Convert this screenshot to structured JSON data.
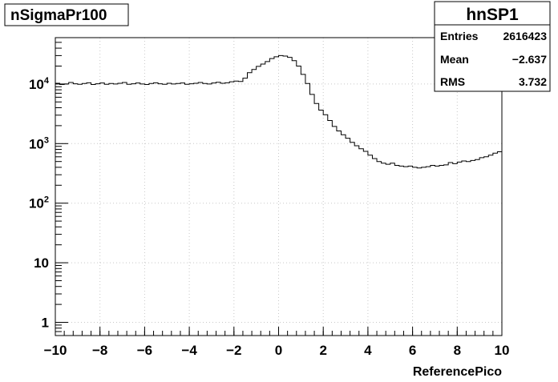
{
  "title": "nSigmaPr100",
  "stats": {
    "name": "hnSP1",
    "rows": [
      {
        "label": "Entries",
        "value": "2616423"
      },
      {
        "label": "Mean",
        "value": "−2.637"
      },
      {
        "label": "RMS",
        "value": "3.732"
      }
    ]
  },
  "chart_data": {
    "type": "histogram",
    "xlabel": "ReferencePico",
    "ylabel": "",
    "xlim": [
      -10,
      10
    ],
    "ylim": [
      0.6,
      60000
    ],
    "log_y": true,
    "grid": true,
    "x_ticks": [
      -10,
      -8,
      -6,
      -4,
      -2,
      0,
      2,
      4,
      6,
      8,
      10
    ],
    "x_tick_labels": [
      "−10",
      "−8",
      "−6",
      "−4",
      "−2",
      "0",
      "2",
      "4",
      "6",
      "8",
      "10"
    ],
    "y_ticks": [
      1,
      10,
      100,
      1000,
      10000
    ],
    "y_tick_labels": [
      "1",
      "10",
      "10^2",
      "10^3",
      "10^4"
    ],
    "bin_edges_start": -10,
    "bin_width": 0.2,
    "counts": [
      10300,
      9800,
      10000,
      10600,
      10100,
      9900,
      10200,
      10500,
      9800,
      10100,
      10400,
      9900,
      10200,
      10000,
      10300,
      10600,
      9900,
      10100,
      10400,
      10000,
      9800,
      10200,
      10500,
      10100,
      9900,
      10300,
      10000,
      10200,
      10400,
      9900,
      10100,
      10300,
      10600,
      10200,
      10000,
      10400,
      10700,
      10300,
      10500,
      10900,
      11200,
      11000,
      12500,
      15500,
      17500,
      19800,
      21600,
      23800,
      26700,
      28700,
      30000,
      29400,
      28000,
      24600,
      20000,
      14500,
      10200,
      6700,
      4700,
      3650,
      3050,
      2440,
      1940,
      1630,
      1410,
      1230,
      1050,
      920,
      820,
      740,
      640,
      560,
      500,
      470,
      450,
      470,
      430,
      420,
      410,
      420,
      400,
      390,
      400,
      410,
      430,
      420,
      430,
      440,
      480,
      460,
      490,
      510,
      500,
      520,
      540,
      580,
      600,
      640,
      690,
      730
    ]
  }
}
